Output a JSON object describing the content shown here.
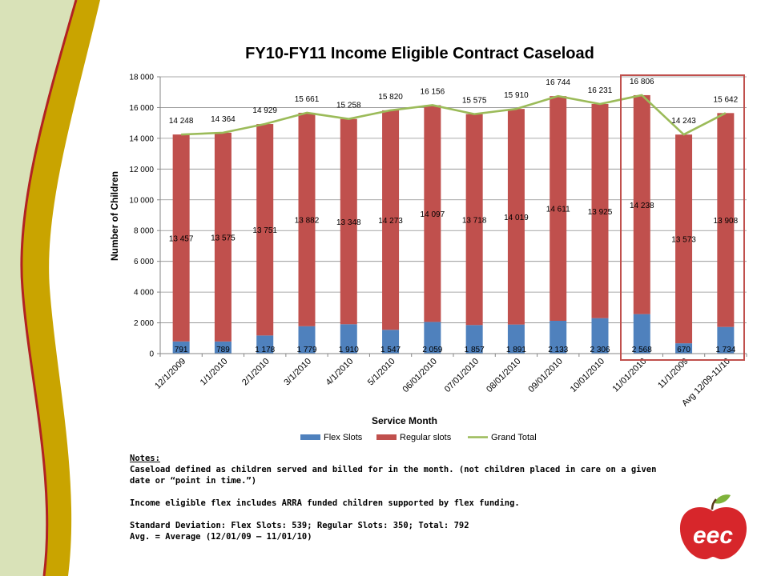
{
  "chart_data": {
    "type": "bar",
    "stacked": true,
    "title": "FY10-FY11 Income Eligible Contract Caseload",
    "xlabel": "Service Month",
    "ylabel": "Number of Children",
    "ylim": [
      0,
      18000
    ],
    "yticks": [
      0,
      2000,
      4000,
      6000,
      8000,
      10000,
      12000,
      14000,
      16000,
      18000
    ],
    "ytick_labels": [
      "0",
      "2 000",
      "4 000",
      "6 000",
      "8 000",
      "10 000",
      "12 000",
      "14 000",
      "16 000",
      "18 000"
    ],
    "grid": true,
    "legend": "bottom",
    "categories": [
      "12/1/2009",
      "1/1/2010",
      "2/1/2010",
      "3/1/2010",
      "4/1/2010",
      "5/1/2010",
      "06/01/2010",
      "07/01/2010",
      "08/01/2010",
      "09/01/2010",
      "10/01/2010",
      "11/01/2010",
      "11/1/2009",
      "Avg 12/09-11/10"
    ],
    "series": [
      {
        "name": "Flex Slots",
        "type": "bar",
        "color": "#4F81BD",
        "values": [
          791,
          789,
          1178,
          1779,
          1910,
          1547,
          2059,
          1857,
          1891,
          2133,
          2306,
          2568,
          670,
          1734
        ],
        "labels": [
          "791",
          "789",
          "1 178",
          "1 779",
          "1 910",
          "1 547",
          "2 059",
          "1 857",
          "1 891",
          "2 133",
          "2 306",
          "2 568",
          "670",
          "1 734"
        ]
      },
      {
        "name": "Regular slots",
        "type": "bar",
        "color": "#C0504D",
        "values": [
          13457,
          13575,
          13751,
          13882,
          13348,
          14273,
          14097,
          13718,
          14019,
          14611,
          13925,
          14238,
          13573,
          13908
        ],
        "labels": [
          "13 457",
          "13 575",
          "13 751",
          "13 882",
          "13 348",
          "14 273",
          "14 097",
          "13 718",
          "14 019",
          "14 611",
          "13 925",
          "14 238",
          "13 573",
          "13 908"
        ]
      },
      {
        "name": "Grand Total",
        "type": "line",
        "color": "#9BBB59",
        "values": [
          14248,
          14364,
          14929,
          15661,
          15258,
          15820,
          16156,
          15575,
          15910,
          16744,
          16231,
          16806,
          14243,
          15642
        ],
        "labels": [
          "14 248",
          "14 364",
          "14 929",
          "15 661",
          "15 258",
          "15 820",
          "16 156",
          "15 575",
          "15 910",
          "16 744",
          "16 231",
          "16 806",
          "14 243",
          "15 642"
        ]
      }
    ],
    "highlight_color": "#C0504D"
  },
  "notes": {
    "heading": "Notes:",
    "line1": "Caseload defined as children served and billed for in the  month. (not children placed in care on a given date or “point in time.”)",
    "line2": "Income eligible flex includes ARRA funded children supported by flex funding.",
    "line3": "Standard Deviation: Flex Slots: 539; Regular Slots: 350; Total: 792",
    "line4": "Avg. = Average (12/01/09 – 11/01/10)"
  },
  "logo": {
    "text": "eec",
    "color": "#D7262B"
  },
  "theme": {
    "cream": "#D9E2B8",
    "gold": "#C9A400",
    "red": "#B22222"
  }
}
